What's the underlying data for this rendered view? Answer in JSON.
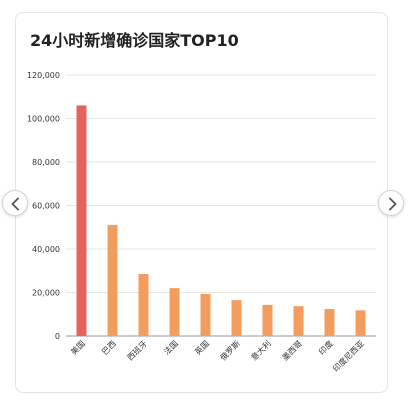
{
  "chart_data": {
    "type": "bar",
    "title": "24小时新增确诊国家TOP10",
    "xlabel": "",
    "ylabel": "",
    "categories": [
      "美国",
      "巴西",
      "西班牙",
      "法国",
      "英国",
      "俄罗斯",
      "意大利",
      "墨西哥",
      "印度",
      "印度尼西亚"
    ],
    "values": [
      106000,
      51000,
      28500,
      22000,
      19300,
      16500,
      14300,
      13700,
      12400,
      11800
    ],
    "ylim": [
      0,
      120000
    ],
    "yticks": [
      0,
      20000,
      40000,
      60000,
      80000,
      100000,
      120000
    ],
    "ytick_labels": [
      "0",
      "20,000",
      "40,000",
      "60,000",
      "80,000",
      "100,000",
      "120,000"
    ],
    "grid": true,
    "legend": "none"
  },
  "colors": {
    "first_bar": "#e5635c",
    "bars": "#f29c5d",
    "grid": "#e6e6e6",
    "axis": "#999999",
    "text": "#333333"
  },
  "nav": {
    "prev_icon": "chevron-left-icon",
    "next_icon": "chevron-right-icon"
  }
}
